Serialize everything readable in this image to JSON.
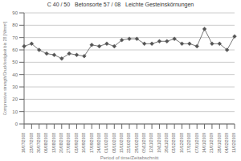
{
  "chart_data": {
    "type": "line",
    "title": "C 40 / 50   Betonsorte 57 / 08   Leichte Gesteinskörnungen",
    "xlabel": "Period of time/Zeitabschnitt",
    "ylabel": "Compressive strength/Druckfestigkeit bis 28 [N/mm²]",
    "categories": [
      "16/07/2008",
      "23/07/2008",
      "30/07/2008",
      "06/08/2008",
      "13/08/2008",
      "20/08/2008",
      "27/08/2008",
      "03/09/2008",
      "10/09/2008",
      "17/09/2008",
      "24/09/2008",
      "01/10/2008",
      "08/10/2008",
      "15/10/2008",
      "22/10/2008",
      "29/10/2008",
      "05/11/2008",
      "12/11/2008",
      "19/11/2008",
      "26/11/2008",
      "03/12/2008",
      "10/12/2008",
      "17/12/2008",
      "07/01/2009",
      "14/01/2009",
      "21/01/2009",
      "28/01/2009",
      "04/02/2009",
      "11/02/2009"
    ],
    "values": [
      63,
      65,
      60,
      57,
      56,
      53,
      57,
      56,
      55,
      64,
      63,
      65,
      63,
      68,
      69,
      69,
      65,
      65,
      67,
      67,
      69,
      65,
      65,
      63,
      77,
      65,
      65,
      60,
      71
    ],
    "color": "#555555",
    "marker": "diamond",
    "ylim": [
      0,
      90
    ],
    "yticks": [
      0,
      10,
      20,
      30,
      40,
      50,
      60,
      70,
      80,
      90
    ],
    "grid": true
  }
}
